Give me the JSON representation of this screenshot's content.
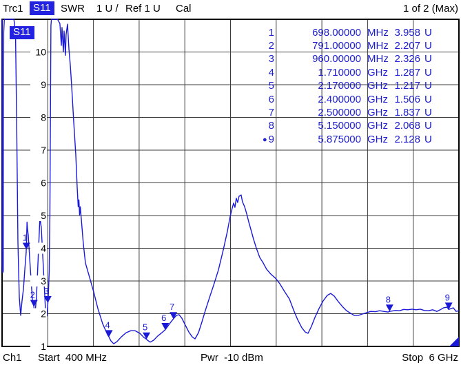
{
  "header": {
    "trace_name": "Trc1",
    "measurement": "S11",
    "format": "SWR",
    "scale_per_div": "1 U /",
    "reference": "Ref 1 U",
    "cal_status": "Cal",
    "page_indicator": "1 of 2 (Max)"
  },
  "plot": {
    "trace_tag": "S11",
    "y_ticks": [
      1,
      2,
      3,
      4,
      5,
      6,
      7,
      8,
      9,
      10
    ],
    "x_divisions": 10
  },
  "footer": {
    "channel": "Ch1",
    "start_label": "Start  400 MHz",
    "power_label": "Pwr  -10 dBm",
    "stop_label": "Stop  6 GHz"
  },
  "colors": {
    "accent_blue": "#1a1ad6",
    "selected_bg": "#2222e0",
    "grid": "#3c3c3c"
  },
  "markers": [
    {
      "id": "1",
      "freq_display": "698.00000",
      "unit": "MHz",
      "value_display": "3.958",
      "value_unit": "U",
      "f_ghz": 0.698,
      "swr": 3.958,
      "active": false
    },
    {
      "id": "2",
      "freq_display": "791.00000",
      "unit": "MHz",
      "value_display": "2.207",
      "value_unit": "U",
      "f_ghz": 0.791,
      "swr": 2.207,
      "active": false
    },
    {
      "id": "3",
      "freq_display": "960.00000",
      "unit": "MHz",
      "value_display": "2.326",
      "value_unit": "U",
      "f_ghz": 0.96,
      "swr": 2.326,
      "active": false
    },
    {
      "id": "4",
      "freq_display": "1.710000",
      "unit": "GHz",
      "value_display": "1.287",
      "value_unit": "U",
      "f_ghz": 1.71,
      "swr": 1.287,
      "active": false
    },
    {
      "id": "5",
      "freq_display": "2.170000",
      "unit": "GHz",
      "value_display": "1.217",
      "value_unit": "U",
      "f_ghz": 2.17,
      "swr": 1.217,
      "active": false
    },
    {
      "id": "6",
      "freq_display": "2.400000",
      "unit": "GHz",
      "value_display": "1.506",
      "value_unit": "U",
      "f_ghz": 2.4,
      "swr": 1.506,
      "active": false
    },
    {
      "id": "7",
      "freq_display": "2.500000",
      "unit": "GHz",
      "value_display": "1.837",
      "value_unit": "U",
      "f_ghz": 2.5,
      "swr": 1.837,
      "active": false
    },
    {
      "id": "8",
      "freq_display": "5.150000",
      "unit": "GHz",
      "value_display": "2.068",
      "value_unit": "U",
      "f_ghz": 5.15,
      "swr": 2.068,
      "active": false
    },
    {
      "id": "9",
      "freq_display": "5.875000",
      "unit": "GHz",
      "value_display": "2.128",
      "value_unit": "U",
      "f_ghz": 5.875,
      "swr": 2.128,
      "active": true
    }
  ],
  "chart_data": {
    "type": "line",
    "title": "Trc1 S11 SWR, 1 U/div, Ref 1 U",
    "xlabel": "Frequency (GHz), Start 400 MHz to Stop 6 GHz",
    "ylabel": "SWR (U)",
    "x_range_ghz": [
      0.4,
      6.0
    ],
    "y_range": [
      1,
      11
    ],
    "grid": true,
    "legend_position": "none",
    "series": [
      {
        "name": "S11 SWR",
        "points": [
          [
            0.4,
            11
          ],
          [
            0.402,
            3.5
          ],
          [
            0.408,
            3.25
          ],
          [
            0.414,
            3.3
          ],
          [
            0.42,
            10.6
          ],
          [
            0.428,
            11
          ],
          [
            0.545,
            11
          ],
          [
            0.565,
            10.6
          ],
          [
            0.578,
            8.0
          ],
          [
            0.594,
            4.2
          ],
          [
            0.611,
            2.5
          ],
          [
            0.628,
            1.95
          ],
          [
            0.645,
            2.4
          ],
          [
            0.662,
            2.75
          ],
          [
            0.68,
            3.4
          ],
          [
            0.695,
            3.85
          ],
          [
            0.7,
            4.2
          ],
          [
            0.706,
            4.8
          ],
          [
            0.712,
            4.6
          ],
          [
            0.721,
            4.4
          ],
          [
            0.746,
            3.38
          ],
          [
            0.772,
            2.43
          ],
          [
            0.79,
            2.21
          ],
          [
            0.8,
            1.86
          ],
          [
            0.822,
            2.54
          ],
          [
            0.848,
            4.0
          ],
          [
            0.864,
            4.94
          ],
          [
            0.881,
            4.64
          ],
          [
            0.907,
            3.38
          ],
          [
            0.932,
            2.12
          ],
          [
            0.948,
            1.93
          ],
          [
            0.958,
            2.2
          ],
          [
            0.966,
            2.5
          ],
          [
            0.978,
            3.27
          ],
          [
            0.986,
            5.0
          ],
          [
            0.999,
            10.8
          ],
          [
            1.005,
            11
          ],
          [
            1.08,
            11
          ],
          [
            1.109,
            10.87
          ],
          [
            1.126,
            10.2
          ],
          [
            1.135,
            10.75
          ],
          [
            1.152,
            10.0
          ],
          [
            1.16,
            10.64
          ],
          [
            1.177,
            9.9
          ],
          [
            1.185,
            10.53
          ],
          [
            1.202,
            10.85
          ],
          [
            1.219,
            10.1
          ],
          [
            1.236,
            9.6
          ],
          [
            1.253,
            8.96
          ],
          [
            1.278,
            7.9
          ],
          [
            1.304,
            6.85
          ],
          [
            1.321,
            5.86
          ],
          [
            1.333,
            5.27
          ],
          [
            1.342,
            5.48
          ],
          [
            1.35,
            5.02
          ],
          [
            1.359,
            5.27
          ],
          [
            1.371,
            4.89
          ],
          [
            1.397,
            4.12
          ],
          [
            1.422,
            3.55
          ],
          [
            1.473,
            3.11
          ],
          [
            1.523,
            2.66
          ],
          [
            1.574,
            2.16
          ],
          [
            1.633,
            1.69
          ],
          [
            1.692,
            1.36
          ],
          [
            1.71,
            1.29
          ],
          [
            1.734,
            1.17
          ],
          [
            1.768,
            1.08
          ],
          [
            1.81,
            1.15
          ],
          [
            1.861,
            1.29
          ],
          [
            1.92,
            1.42
          ],
          [
            1.979,
            1.48
          ],
          [
            2.03,
            1.48
          ],
          [
            2.089,
            1.4
          ],
          [
            2.14,
            1.27
          ],
          [
            2.17,
            1.22
          ],
          [
            2.182,
            1.19
          ],
          [
            2.216,
            1.13
          ],
          [
            2.258,
            1.19
          ],
          [
            2.309,
            1.32
          ],
          [
            2.359,
            1.42
          ],
          [
            2.4,
            1.51
          ],
          [
            2.461,
            1.72
          ],
          [
            2.5,
            1.84
          ],
          [
            2.537,
            1.95
          ],
          [
            2.57,
            1.97
          ],
          [
            2.604,
            1.86
          ],
          [
            2.646,
            1.65
          ],
          [
            2.689,
            1.44
          ],
          [
            2.731,
            1.29
          ],
          [
            2.765,
            1.23
          ],
          [
            2.807,
            1.42
          ],
          [
            2.849,
            1.74
          ],
          [
            2.891,
            2.09
          ],
          [
            2.942,
            2.49
          ],
          [
            2.993,
            2.87
          ],
          [
            3.052,
            3.34
          ],
          [
            3.111,
            3.95
          ],
          [
            3.162,
            4.52
          ],
          [
            3.195,
            4.96
          ],
          [
            3.221,
            5.23
          ],
          [
            3.238,
            5.38
          ],
          [
            3.254,
            5.25
          ],
          [
            3.271,
            5.53
          ],
          [
            3.288,
            5.4
          ],
          [
            3.305,
            5.59
          ],
          [
            3.33,
            5.63
          ],
          [
            3.347,
            5.42
          ],
          [
            3.373,
            5.27
          ],
          [
            3.398,
            5.06
          ],
          [
            3.423,
            4.81
          ],
          [
            3.449,
            4.58
          ],
          [
            3.482,
            4.28
          ],
          [
            3.516,
            4.01
          ],
          [
            3.558,
            3.72
          ],
          [
            3.601,
            3.55
          ],
          [
            3.643,
            3.36
          ],
          [
            3.694,
            3.21
          ],
          [
            3.753,
            3.08
          ],
          [
            3.803,
            2.92
          ],
          [
            3.862,
            2.68
          ],
          [
            3.922,
            2.45
          ],
          [
            3.972,
            2.12
          ],
          [
            4.023,
            1.82
          ],
          [
            4.074,
            1.57
          ],
          [
            4.116,
            1.44
          ],
          [
            4.15,
            1.4
          ],
          [
            4.192,
            1.61
          ],
          [
            4.234,
            1.88
          ],
          [
            4.285,
            2.16
          ],
          [
            4.335,
            2.39
          ],
          [
            4.386,
            2.56
          ],
          [
            4.428,
            2.62
          ],
          [
            4.471,
            2.54
          ],
          [
            4.521,
            2.37
          ],
          [
            4.572,
            2.22
          ],
          [
            4.623,
            2.09
          ],
          [
            4.673,
            2.01
          ],
          [
            4.715,
            1.95
          ],
          [
            4.766,
            1.95
          ],
          [
            4.817,
            1.99
          ],
          [
            4.868,
            2.03
          ],
          [
            4.918,
            2.07
          ],
          [
            4.977,
            2.06
          ],
          [
            5.028,
            2.09
          ],
          [
            5.078,
            2.07
          ],
          [
            5.129,
            2.05
          ],
          [
            5.15,
            2.07
          ],
          [
            5.222,
            2.1
          ],
          [
            5.273,
            2.09
          ],
          [
            5.323,
            2.13
          ],
          [
            5.374,
            2.12
          ],
          [
            5.424,
            2.14
          ],
          [
            5.475,
            2.12
          ],
          [
            5.526,
            2.14
          ],
          [
            5.577,
            2.1
          ],
          [
            5.627,
            2.09
          ],
          [
            5.678,
            2.12
          ],
          [
            5.729,
            2.07
          ],
          [
            5.771,
            2.12
          ],
          [
            5.813,
            2.18
          ],
          [
            5.855,
            2.2
          ],
          [
            5.875,
            2.13
          ],
          [
            5.931,
            2.18
          ],
          [
            5.965,
            2.07
          ],
          [
            5.999,
            2.09
          ]
        ]
      }
    ],
    "marker_points": [
      {
        "n": 1,
        "f_ghz": 0.698,
        "swr": 3.958
      },
      {
        "n": 2,
        "f_ghz": 0.791,
        "swr": 2.207
      },
      {
        "n": 3,
        "f_ghz": 0.96,
        "swr": 2.326
      },
      {
        "n": 4,
        "f_ghz": 1.71,
        "swr": 1.287
      },
      {
        "n": 5,
        "f_ghz": 2.17,
        "swr": 1.217
      },
      {
        "n": 6,
        "f_ghz": 2.4,
        "swr": 1.506
      },
      {
        "n": 7,
        "f_ghz": 2.5,
        "swr": 1.837
      },
      {
        "n": 8,
        "f_ghz": 5.15,
        "swr": 2.068
      },
      {
        "n": 9,
        "f_ghz": 5.875,
        "swr": 2.128
      }
    ]
  }
}
